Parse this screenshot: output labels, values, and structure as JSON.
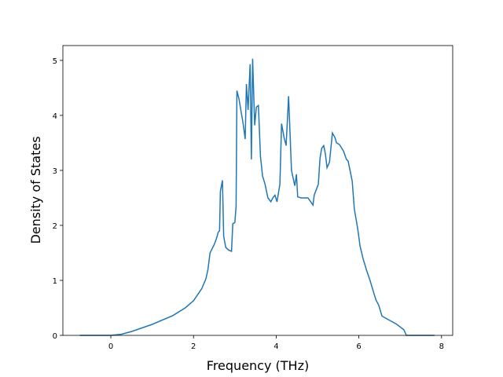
{
  "chart_data": {
    "type": "line",
    "x_label": "Frequency (THz)",
    "y_label": "Density of States",
    "xlim": [
      -1.16,
      8.27
    ],
    "ylim": [
      0,
      5.27
    ],
    "xticks": [
      0,
      2,
      4,
      6,
      8
    ],
    "yticks": [
      0,
      1,
      2,
      3,
      4,
      5
    ],
    "x": [
      -0.75,
      0,
      0.25,
      0.5,
      1,
      1.5,
      1.8,
      2,
      2.2,
      2.3,
      2.35,
      2.4,
      2.5,
      2.55,
      2.6,
      2.63,
      2.65,
      2.7,
      2.73,
      2.78,
      2.85,
      2.92,
      2.95,
      3.0,
      3.03,
      3.05,
      3.1,
      3.2,
      3.25,
      3.28,
      3.32,
      3.37,
      3.4,
      3.43,
      3.48,
      3.52,
      3.57,
      3.62,
      3.67,
      3.73,
      3.8,
      3.87,
      3.92,
      3.97,
      4.02,
      4.09,
      4.13,
      4.19,
      4.24,
      4.3,
      4.37,
      4.45,
      4.49,
      4.52,
      4.6,
      4.77,
      4.89,
      4.92,
      5.02,
      5.06,
      5.1,
      5.15,
      5.19,
      5.23,
      5.29,
      5.36,
      5.42,
      5.46,
      5.53,
      5.63,
      5.7,
      5.74,
      5.8,
      5.84,
      5.89,
      5.97,
      6.03,
      6.1,
      6.18,
      6.27,
      6.41,
      6.48,
      6.56,
      6.92,
      7.09,
      7.15,
      7.83
    ],
    "series": [
      {
        "color": "#1f77b4",
        "values": [
          0,
          0,
          0.02,
          0.07,
          0.2,
          0.36,
          0.5,
          0.63,
          0.85,
          1.03,
          1.2,
          1.5,
          1.65,
          1.75,
          1.88,
          1.9,
          2.62,
          2.82,
          1.8,
          1.6,
          1.55,
          1.53,
          2.03,
          2.05,
          2.35,
          4.45,
          4.3,
          3.85,
          3.57,
          4.57,
          4.1,
          4.93,
          3.2,
          5.03,
          3.82,
          4.15,
          4.18,
          3.25,
          2.9,
          2.75,
          2.5,
          2.43,
          2.5,
          2.55,
          2.43,
          2.75,
          3.85,
          3.6,
          3.45,
          4.35,
          3.0,
          2.72,
          2.93,
          2.52,
          2.5,
          2.5,
          2.37,
          2.55,
          2.75,
          3.22,
          3.4,
          3.45,
          3.3,
          3.05,
          3.15,
          3.68,
          3.6,
          3.5,
          3.47,
          3.35,
          3.2,
          3.17,
          2.95,
          2.8,
          2.3,
          1.95,
          1.62,
          1.4,
          1.2,
          1.0,
          0.65,
          0.55,
          0.35,
          0.2,
          0.1,
          0,
          0
        ]
      }
    ]
  }
}
